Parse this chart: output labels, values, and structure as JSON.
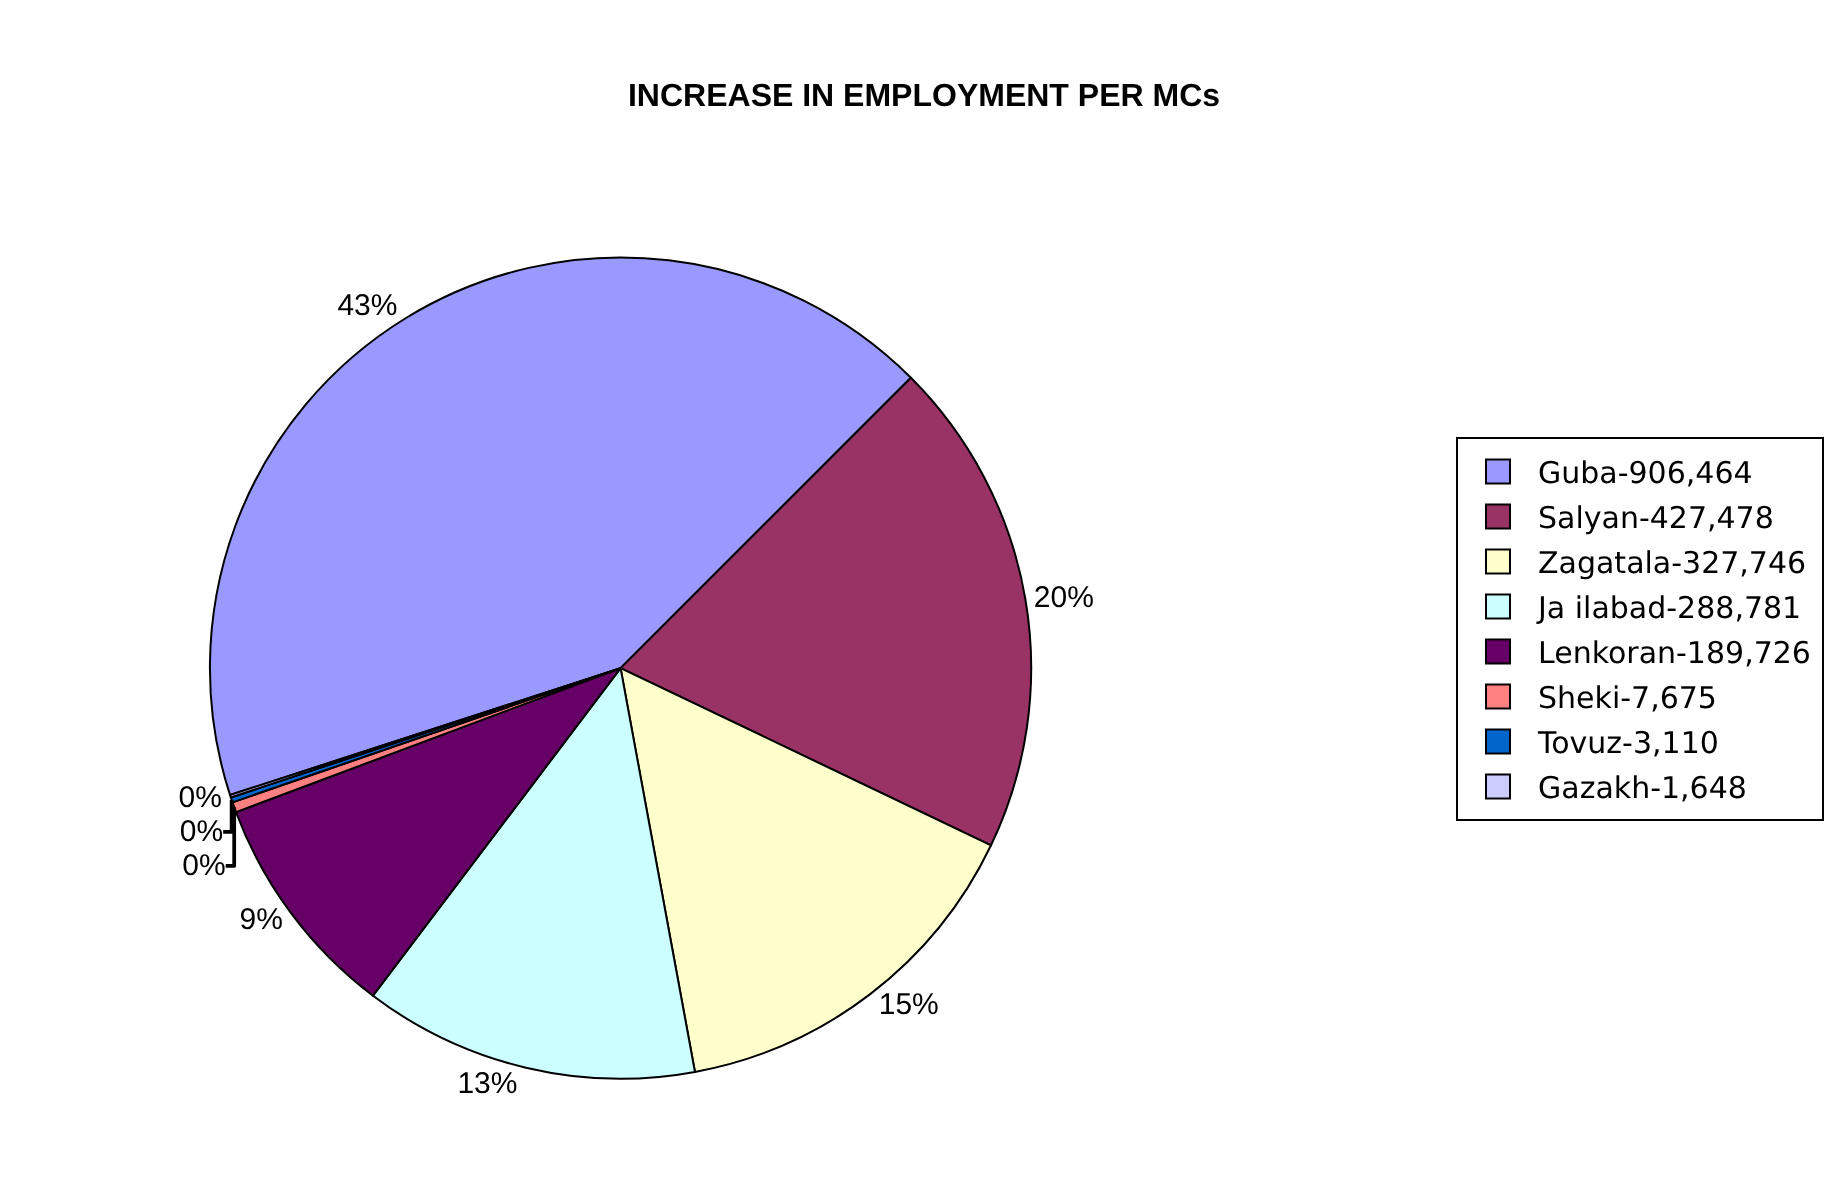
{
  "chart_data": {
    "type": "pie",
    "title": "INCREASE IN EMPLOYMENT PER MCs",
    "categories": [
      "Guba-906,464",
      "Salyan-427,478",
      "Zagatala-327,746",
      "Ja ilabad-288,781",
      "Lenkoran-189,726",
      "Sheki-7,675",
      "Tovuz-3,110",
      "Gazakh-1,648"
    ],
    "values": [
      42.5,
      19.6,
      15.0,
      13.2,
      9.0,
      0.4,
      0.2,
      0.1
    ],
    "value_labels": [
      "43%",
      "20%",
      "15%",
      "13%",
      "9%",
      "0%",
      "0%",
      "0%"
    ],
    "colors": [
      "#9999ff",
      "#993366",
      "#ffffcc",
      "#ccffff",
      "#660066",
      "#ff8080",
      "#0066cc",
      "#ccccff"
    ],
    "legend": "right"
  }
}
